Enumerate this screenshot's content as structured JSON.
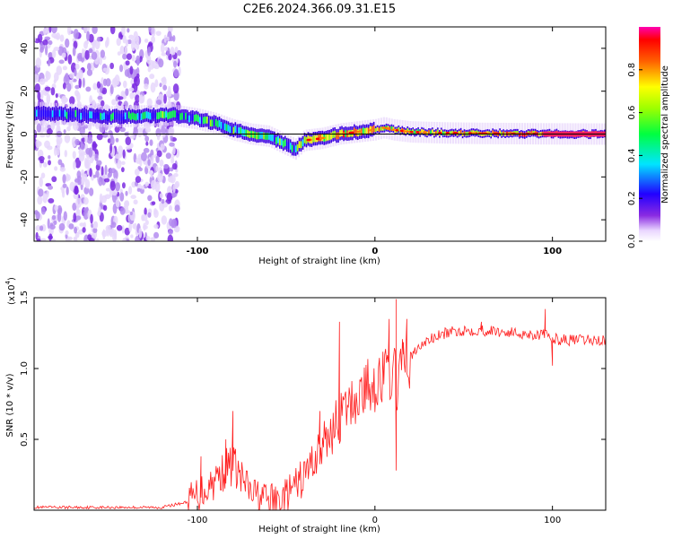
{
  "title": "C2E6.2024.366.09.31.E15",
  "colors": {
    "snr_line": "#ff2020",
    "axis": "#000000",
    "cbar_ref_line": "#000000"
  },
  "chart_data": [
    {
      "type": "heatmap",
      "name": "spectrogram",
      "xlabel": "Height of straight line (km)",
      "ylabel": "Frequency (Hz)",
      "xlim": [
        -192,
        130
      ],
      "ylim": [
        -50,
        50
      ],
      "xticks": [
        {
          "v": -100,
          "t": "-100"
        },
        {
          "v": 0,
          "t": "0"
        },
        {
          "v": 100,
          "t": "100"
        }
      ],
      "yticks": [
        {
          "v": 40,
          "t": "40"
        },
        {
          "v": 20,
          "t": "20"
        },
        {
          "v": 0,
          "t": "0"
        },
        {
          "v": -20,
          "t": "-20"
        },
        {
          "v": -40,
          "t": "-40"
        }
      ],
      "ridge": {
        "x": [
          -192,
          -170,
          -150,
          -130,
          -115,
          -100,
          -90,
          -80,
          -70,
          -60,
          -50,
          -45,
          -40,
          -30,
          -20,
          -10,
          0,
          5,
          10,
          20,
          40,
          60,
          80,
          95,
          130
        ],
        "freq": [
          10,
          9,
          8,
          8.5,
          9,
          7,
          5,
          2,
          0,
          -1,
          -5,
          -7,
          -3,
          -2,
          0,
          1,
          2,
          3,
          2,
          1,
          0.5,
          0.3,
          0.2,
          0.1,
          0
        ],
        "amplitude": [
          0.3,
          0.35,
          0.35,
          0.45,
          0.5,
          0.45,
          0.5,
          0.5,
          0.5,
          0.55,
          0.45,
          0.5,
          0.7,
          0.75,
          0.8,
          0.7,
          0.75,
          0.7,
          0.75,
          0.7,
          0.75,
          0.8,
          0.85,
          0.85,
          1.0
        ]
      },
      "noise_region_x": [
        -192,
        -110
      ],
      "reference_line_freq": 0,
      "colorbar": {
        "label": "Normalized spectral amplitude",
        "range": [
          0,
          1
        ],
        "ticks": [
          {
            "v": 0,
            "t": "0.0"
          },
          {
            "v": 0.2,
            "t": "0.2"
          },
          {
            "v": 0.4,
            "t": "0.4"
          },
          {
            "v": 0.6,
            "t": "0.6"
          },
          {
            "v": 0.8,
            "t": "0.8"
          }
        ],
        "colormap": [
          "#ffffff",
          "#6a00ff",
          "#0000ff",
          "#00ffff",
          "#00ff00",
          "#ffff00",
          "#ff8000",
          "#ff0000",
          "#ff00ff"
        ]
      }
    },
    {
      "type": "line",
      "name": "snr",
      "xlabel": "Height of straight line (km)",
      "ylabel": "SNR (10 * v/v)",
      "y_multiplier_label": "(x10",
      "y_multiplier_exp": "4",
      "xlim": [
        -192,
        130
      ],
      "ylim": [
        0,
        1.5
      ],
      "xticks": [
        {
          "v": -100,
          "t": "-100"
        },
        {
          "v": 0,
          "t": "0"
        },
        {
          "v": 100,
          "t": "100"
        }
      ],
      "yticks": [
        {
          "v": 1.5,
          "t": "1.5"
        },
        {
          "v": 1.0,
          "t": "1.0"
        },
        {
          "v": 0.5,
          "t": "0.5"
        }
      ],
      "series": [
        {
          "envelope_x": [
            -192,
            -150,
            -120,
            -105,
            -95,
            -85,
            -80,
            -75,
            -70,
            -60,
            -55,
            -50,
            -45,
            -40,
            -35,
            -30,
            -25,
            -20,
            -15,
            -10,
            -5,
            0,
            5,
            10,
            12,
            15,
            20,
            25,
            30,
            40,
            50,
            60,
            70,
            80,
            90,
            95,
            100,
            110,
            120,
            130
          ],
          "envelope_y": [
            0.02,
            0.02,
            0.02,
            0.06,
            0.16,
            0.28,
            0.33,
            0.22,
            0.12,
            0.07,
            0.06,
            0.1,
            0.16,
            0.24,
            0.35,
            0.44,
            0.55,
            0.64,
            0.72,
            0.8,
            0.86,
            0.9,
            0.94,
            0.98,
            0.9,
            1.0,
            1.08,
            1.15,
            1.2,
            1.25,
            1.27,
            1.27,
            1.26,
            1.25,
            1.24,
            1.24,
            1.21,
            1.2,
            1.2,
            1.2
          ],
          "spikes": [
            {
              "x": -80,
              "y": 0.7
            },
            {
              "x": -84,
              "y": 0.5
            },
            {
              "x": -98,
              "y": 0.38
            },
            {
              "x": -31,
              "y": 0.7
            },
            {
              "x": -20,
              "y": 1.33
            },
            {
              "x": -17,
              "y": 0.8
            },
            {
              "x": -5,
              "y": 1.0
            },
            {
              "x": 8,
              "y": 1.35
            },
            {
              "x": 12,
              "y": 0.28
            },
            {
              "x": 12,
              "y": 1.49
            },
            {
              "x": 16,
              "y": 1.1
            },
            {
              "x": 18,
              "y": 1.35
            },
            {
              "x": 60,
              "y": 1.33
            },
            {
              "x": 96,
              "y": 1.42
            },
            {
              "x": 100,
              "y": 1.02
            }
          ]
        }
      ]
    }
  ]
}
